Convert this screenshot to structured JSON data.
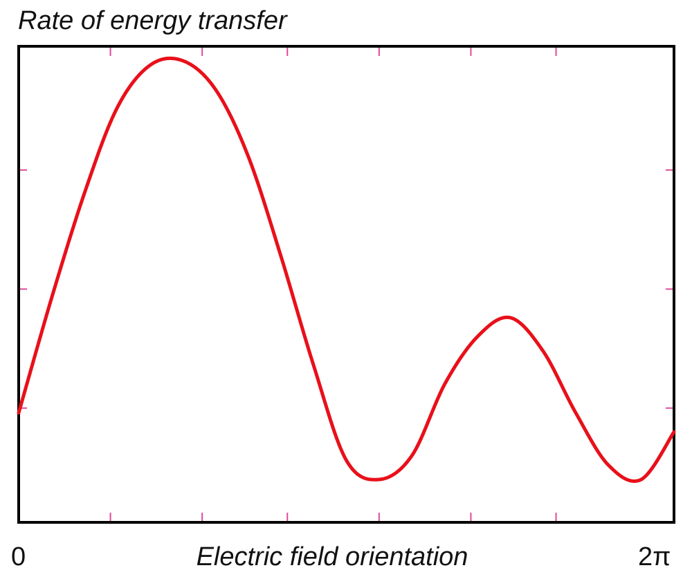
{
  "chart_data": {
    "type": "line",
    "title": "Rate of energy transfer",
    "xlabel": "Electric field orientation",
    "ylabel": "",
    "x_tick_labels": {
      "start": "0",
      "end": "2π"
    },
    "xlim": [
      0,
      6.2832
    ],
    "ylim": [
      0,
      1
    ],
    "grid": false,
    "legend": "none",
    "x_minor_ticks": [
      0.8796,
      1.7593,
      2.5761,
      3.4558,
      4.3354,
      5.1522
    ],
    "y_minor_ticks": [
      0.24,
      0.49,
      0.74
    ],
    "series": [
      {
        "color": "#e8101a",
        "x": [
          0.0,
          0.314,
          0.628,
          0.942,
          1.257,
          1.571,
          1.885,
          2.199,
          2.513,
          2.827,
          3.142,
          3.456,
          3.77,
          4.084,
          4.398,
          4.712,
          5.027,
          5.341,
          5.655,
          5.969,
          6.283
        ],
        "y": [
          0.23,
          0.47,
          0.69,
          0.87,
          0.96,
          0.97,
          0.91,
          0.77,
          0.56,
          0.33,
          0.13,
          0.09,
          0.14,
          0.29,
          0.39,
          0.43,
          0.36,
          0.23,
          0.12,
          0.09,
          0.19
        ]
      }
    ],
    "colors": {
      "curve": "#e8101a",
      "tick": "#e0489a",
      "frame": "#000000"
    }
  }
}
